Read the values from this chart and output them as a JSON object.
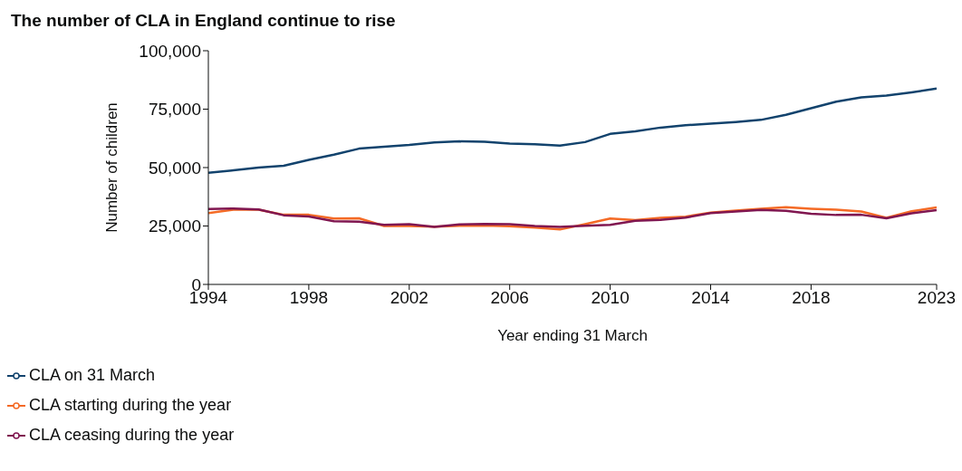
{
  "chart_data": {
    "type": "line",
    "title": "The number of CLA in England continue to rise",
    "xlabel": "Year ending 31 March",
    "ylabel": "Number of children",
    "x": [
      1994,
      1995,
      1996,
      1997,
      1998,
      1999,
      2000,
      2001,
      2002,
      2003,
      2004,
      2005,
      2006,
      2007,
      2008,
      2009,
      2010,
      2011,
      2012,
      2013,
      2014,
      2015,
      2016,
      2017,
      2018,
      2019,
      2020,
      2021,
      2022,
      2023
    ],
    "series": [
      {
        "name": "CLA on 31 March",
        "color": "#12436d",
        "values": [
          47800,
          48800,
          50000,
          50800,
          53300,
          55500,
          58100,
          58900,
          59700,
          60800,
          61200,
          61000,
          60300,
          60000,
          59400,
          60900,
          64400,
          65500,
          67100,
          68100,
          68800,
          69500,
          70400,
          72600,
          75400,
          78200,
          80000,
          80800,
          82200,
          83800
        ]
      },
      {
        "name": "CLA starting during the year",
        "color": "#f46a25",
        "values": [
          30500,
          32000,
          32000,
          29800,
          29800,
          28200,
          28300,
          25000,
          25000,
          24700,
          25100,
          25200,
          24900,
          24300,
          23500,
          25800,
          28200,
          27500,
          28500,
          29000,
          30700,
          31600,
          32400,
          33000,
          32400,
          32000,
          31200,
          28500,
          31300,
          33000
        ]
      },
      {
        "name": "CLA ceasing during the year",
        "color": "#801650",
        "values": [
          32300,
          32500,
          32100,
          29600,
          29100,
          27000,
          26800,
          25500,
          25800,
          24600,
          25700,
          25900,
          25800,
          25000,
          24600,
          25100,
          25500,
          27200,
          27600,
          28600,
          30500,
          31200,
          31900,
          31500,
          30200,
          29700,
          29800,
          28300,
          30400,
          31800
        ]
      }
    ],
    "xlim": [
      1994,
      2023
    ],
    "xticks": [
      1994,
      1998,
      2002,
      2006,
      2010,
      2014,
      2018,
      2023
    ],
    "ylim": [
      0,
      100000
    ],
    "yticks": [
      0,
      {
        "value": 25000,
        "label": "25,000"
      },
      {
        "value": 50000,
        "label": "50,000"
      },
      {
        "value": 75000,
        "label": "75,000"
      },
      {
        "value": 100000,
        "label": "100,000"
      }
    ],
    "grid": false,
    "legend": "bottom left",
    "marker": "none",
    "line_style": "solid"
  }
}
